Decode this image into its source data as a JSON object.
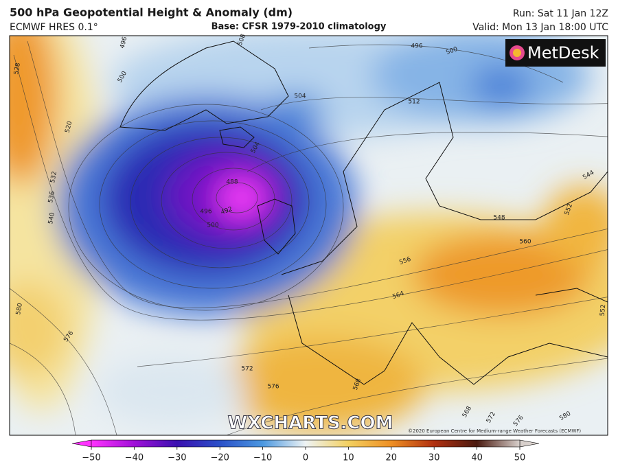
{
  "header": {
    "title": "500 hPa Geopotential Height & Anomaly (dm)",
    "model": "ECMWF HRES 0.1°",
    "base": "Base: CFSR 1979-2010 climatology",
    "run": "Run: Sat 11 Jan 12Z",
    "valid": "Valid: Mon 13 Jan 18:00 UTC"
  },
  "logo": "MetDesk",
  "watermark": "WXCHARTS.COM",
  "copyright": "©2020 European Centre for Medium-range Weather Forecasts (ECMWF)",
  "contour_labels": [
    528,
    520,
    532,
    536,
    540,
    580,
    576,
    496,
    500,
    508,
    504,
    496,
    500,
    512,
    488,
    492,
    496,
    500,
    504,
    548,
    544,
    552,
    560,
    556,
    564,
    572,
    576,
    568,
    552,
    568,
    572,
    576,
    580
  ],
  "colorbar": {
    "ticks": [
      {
        "value": -50,
        "label": "−50"
      },
      {
        "value": -40,
        "label": "−40"
      },
      {
        "value": -30,
        "label": "−30"
      },
      {
        "value": -20,
        "label": "−20"
      },
      {
        "value": -10,
        "label": "−10"
      },
      0,
      10,
      20,
      30,
      40,
      50
    ],
    "colors": [
      "#ff33ff",
      "#a010d8",
      "#3a10b0",
      "#2a50c8",
      "#4c98e0",
      "#eef3f4",
      "#f3d060",
      "#ee8f24",
      "#b03010",
      "#4a1a10",
      "#d8d0cc"
    ]
  }
}
